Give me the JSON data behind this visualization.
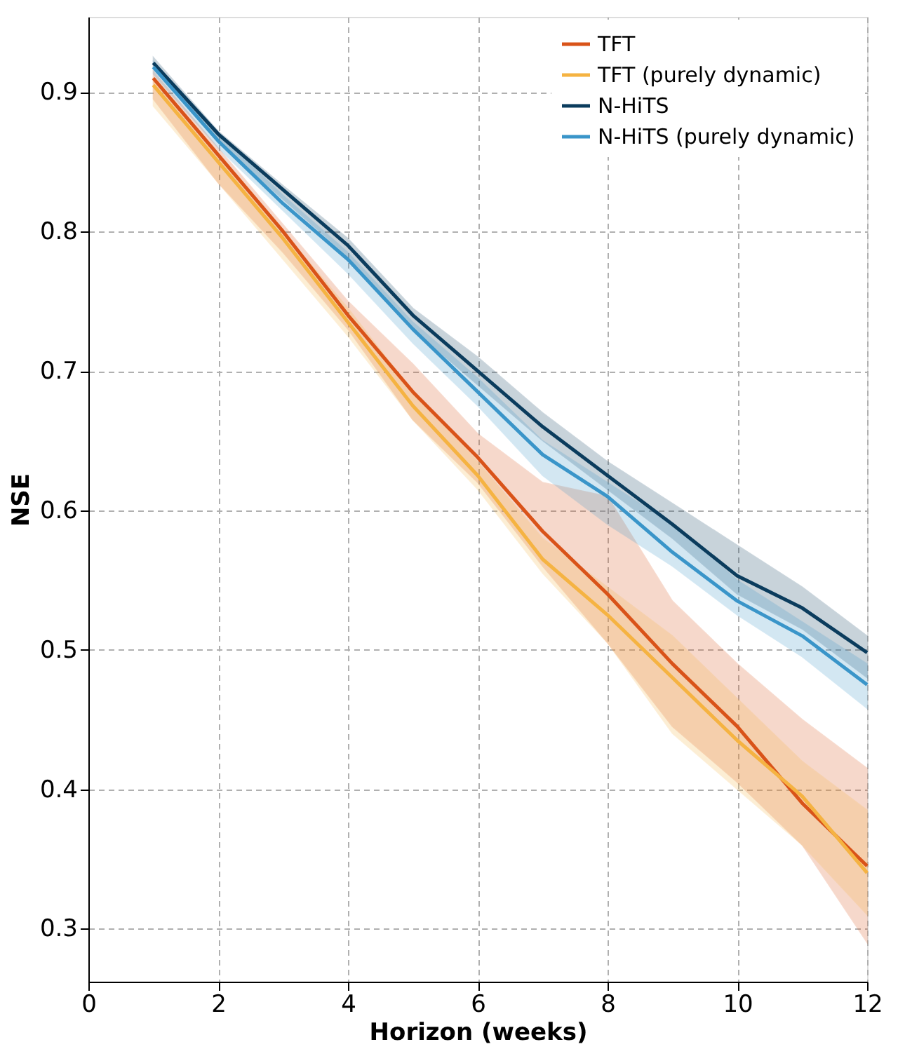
{
  "chart_data": {
    "type": "line",
    "xlabel": "Horizon (weeks)",
    "ylabel": "NSE",
    "x": [
      1,
      2,
      3,
      4,
      5,
      6,
      7,
      8,
      9,
      10,
      11,
      12
    ],
    "xlim": [
      0,
      12
    ],
    "xticks": [
      0,
      2,
      4,
      6,
      8,
      10,
      12
    ],
    "ylim": [
      0.262,
      0.954
    ],
    "yticks": [
      0.3,
      0.4,
      0.5,
      0.6,
      0.7,
      0.8,
      0.9
    ],
    "grid": true,
    "legend": "top right",
    "line_style": "solid",
    "marker": "none",
    "series": [
      {
        "name": "TFT",
        "color": "#d95319",
        "values": [
          0.91,
          0.855,
          0.8,
          0.74,
          0.685,
          0.638,
          0.585,
          0.54,
          0.49,
          0.445,
          0.39,
          0.345
        ],
        "lower": [
          0.895,
          0.835,
          0.785,
          0.73,
          0.665,
          0.62,
          0.56,
          0.505,
          0.445,
          0.405,
          0.36,
          0.29
        ],
        "upper": [
          0.915,
          0.86,
          0.805,
          0.75,
          0.705,
          0.655,
          0.62,
          0.61,
          0.535,
          0.49,
          0.45,
          0.415
        ]
      },
      {
        "name": "TFT (purely dynamic)",
        "color": "#f5b342",
        "values": [
          0.905,
          0.85,
          0.795,
          0.735,
          0.675,
          0.625,
          0.565,
          0.525,
          0.48,
          0.435,
          0.395,
          0.34
        ],
        "lower": [
          0.89,
          0.835,
          0.78,
          0.725,
          0.665,
          0.615,
          0.555,
          0.505,
          0.44,
          0.4,
          0.36,
          0.31
        ],
        "upper": [
          0.91,
          0.855,
          0.8,
          0.745,
          0.685,
          0.635,
          0.58,
          0.545,
          0.51,
          0.465,
          0.42,
          0.385
        ]
      },
      {
        "name": "N-HiTS",
        "color": "#0b3c5d",
        "values": [
          0.921,
          0.87,
          0.83,
          0.79,
          0.74,
          0.7,
          0.66,
          0.625,
          0.59,
          0.553,
          0.53,
          0.498
        ],
        "lower": [
          0.918,
          0.865,
          0.823,
          0.782,
          0.73,
          0.69,
          0.65,
          0.615,
          0.58,
          0.54,
          0.515,
          0.48
        ],
        "upper": [
          0.925,
          0.872,
          0.833,
          0.795,
          0.745,
          0.71,
          0.67,
          0.635,
          0.605,
          0.575,
          0.545,
          0.51
        ]
      },
      {
        "name": "N-HiTS (purely dynamic)",
        "color": "#3a95c9",
        "values": [
          0.918,
          0.865,
          0.82,
          0.78,
          0.73,
          0.685,
          0.64,
          0.61,
          0.57,
          0.535,
          0.51,
          0.475
        ],
        "lower": [
          0.913,
          0.86,
          0.815,
          0.77,
          0.72,
          0.675,
          0.625,
          0.59,
          0.56,
          0.525,
          0.495,
          0.458
        ],
        "upper": [
          0.922,
          0.87,
          0.826,
          0.785,
          0.735,
          0.695,
          0.65,
          0.62,
          0.59,
          0.55,
          0.52,
          0.49
        ]
      }
    ]
  }
}
